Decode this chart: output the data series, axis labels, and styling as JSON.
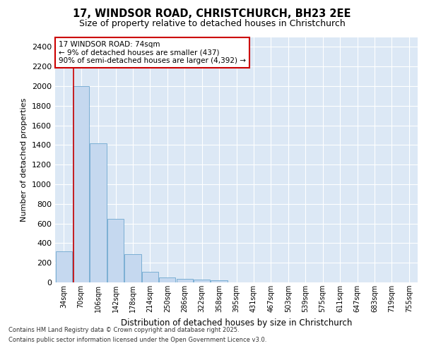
{
  "title_line1": "17, WINDSOR ROAD, CHRISTCHURCH, BH23 2EE",
  "title_line2": "Size of property relative to detached houses in Christchurch",
  "xlabel": "Distribution of detached houses by size in Christchurch",
  "ylabel": "Number of detached properties",
  "categories": [
    "34sqm",
    "70sqm",
    "106sqm",
    "142sqm",
    "178sqm",
    "214sqm",
    "250sqm",
    "286sqm",
    "322sqm",
    "358sqm",
    "395sqm",
    "431sqm",
    "467sqm",
    "503sqm",
    "539sqm",
    "575sqm",
    "611sqm",
    "647sqm",
    "683sqm",
    "719sqm",
    "755sqm"
  ],
  "values": [
    320,
    2000,
    1420,
    650,
    290,
    105,
    48,
    38,
    28,
    18,
    0,
    0,
    0,
    0,
    0,
    0,
    0,
    0,
    0,
    0,
    0
  ],
  "bar_color": "#c5d8ef",
  "bar_edge_color": "#7bafd4",
  "vline_color": "#cc0000",
  "annotation_text": "17 WINDSOR ROAD: 74sqm\n← 9% of detached houses are smaller (437)\n90% of semi-detached houses are larger (4,392) →",
  "annotation_box_color": "#ffffff",
  "annotation_box_edge": "#cc0000",
  "ylim": [
    0,
    2500
  ],
  "yticks": [
    0,
    200,
    400,
    600,
    800,
    1000,
    1200,
    1400,
    1600,
    1800,
    2000,
    2200,
    2400
  ],
  "plot_bg_color": "#dce8f5",
  "grid_color": "#ffffff",
  "fig_bg_color": "#ffffff",
  "footer_line1": "Contains HM Land Registry data © Crown copyright and database right 2025.",
  "footer_line2": "Contains public sector information licensed under the Open Government Licence v3.0."
}
